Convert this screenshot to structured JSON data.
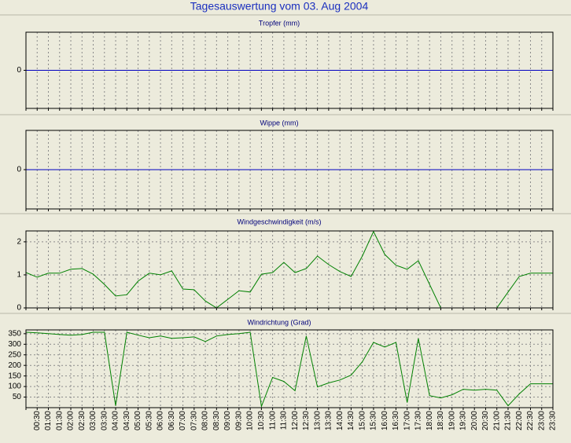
{
  "title": "Tagesauswertung vom 03. Aug 2004",
  "categories": [
    null,
    "00:30",
    "01:00",
    "01:30",
    "02:00",
    "02:30",
    "03:00",
    "03:30",
    "04:00",
    "04:30",
    "05:00",
    "05:30",
    "06:00",
    "06:30",
    "07:00",
    "07:30",
    "08:00",
    "08:30",
    "09:00",
    "09:30",
    "10:00",
    "10:30",
    "11:00",
    "11:30",
    "12:00",
    "12:30",
    "13:00",
    "13:30",
    "14:00",
    "14:30",
    "15:00",
    "15:30",
    "16:00",
    "16:30",
    "17:00",
    "17:30",
    "18:00",
    "18:30",
    "19:00",
    "19:30",
    "20:00",
    "20:30",
    "21:00",
    "21:30",
    "22:00",
    "22:30",
    "23:00",
    "23:30"
  ],
  "chart_data": [
    {
      "type": "line",
      "title": "Tropfer (mm)",
      "ylim": [
        -1,
        1
      ],
      "yticks": [
        0
      ],
      "grid": false,
      "color": "#0000c0",
      "values": [
        0,
        0,
        0,
        0,
        0,
        0,
        0,
        0,
        0,
        0,
        0,
        0,
        0,
        0,
        0,
        0,
        0,
        0,
        0,
        0,
        0,
        0,
        0,
        0,
        0,
        0,
        0,
        0,
        0,
        0,
        0,
        0,
        0,
        0,
        0,
        0,
        0,
        0,
        0,
        0,
        0,
        0,
        0,
        0,
        0,
        0,
        0,
        0
      ]
    },
    {
      "type": "line",
      "title": "Wippe (mm)",
      "ylim": [
        -1,
        1
      ],
      "yticks": [
        0
      ],
      "grid": false,
      "color": "#0000c0",
      "values": [
        0,
        0,
        0,
        0,
        0,
        0,
        0,
        0,
        0,
        0,
        0,
        0,
        0,
        0,
        0,
        0,
        0,
        0,
        0,
        0,
        0,
        0,
        0,
        0,
        0,
        0,
        0,
        0,
        0,
        0,
        0,
        0,
        0,
        0,
        0,
        0,
        0,
        0,
        0,
        0,
        0,
        0,
        0,
        0,
        0,
        0,
        0,
        0
      ]
    },
    {
      "type": "line",
      "title": "Windgeschwindigkeit (m/s)",
      "ylim": [
        0,
        2.33
      ],
      "yticks": [
        0,
        1,
        2
      ],
      "grid": true,
      "color": "#008000",
      "values": [
        1.07,
        0.93,
        1.05,
        1.05,
        1.17,
        1.19,
        1.02,
        0.71,
        0.36,
        0.4,
        0.81,
        1.05,
        1.0,
        1.12,
        0.57,
        0.55,
        0.21,
        0,
        0.26,
        0.52,
        0.48,
        1.02,
        1.07,
        1.38,
        1.07,
        1.19,
        1.57,
        1.31,
        1.1,
        0.95,
        1.57,
        2.31,
        1.62,
        1.29,
        1.17,
        1.43,
        0.71,
        0,
        0,
        0,
        0,
        0,
        0,
        0.48,
        0.95,
        1.05,
        1.05,
        1.05
      ]
    },
    {
      "type": "line",
      "title": "Windrichtung (Grad)",
      "ylim": [
        0,
        368
      ],
      "yticks": [
        50,
        100,
        150,
        200,
        250,
        300,
        350
      ],
      "grid": true,
      "color": "#008000",
      "values": [
        357,
        354,
        350,
        346,
        343,
        346,
        357,
        357,
        9,
        357,
        343,
        331,
        339,
        328,
        331,
        335,
        313,
        339,
        346,
        350,
        357,
        6,
        143,
        124,
        80,
        339,
        98,
        117,
        131,
        154,
        217,
        309,
        287,
        309,
        24,
        328,
        57,
        46,
        61,
        87,
        83,
        87,
        83,
        9,
        65,
        113,
        113,
        113
      ]
    }
  ]
}
